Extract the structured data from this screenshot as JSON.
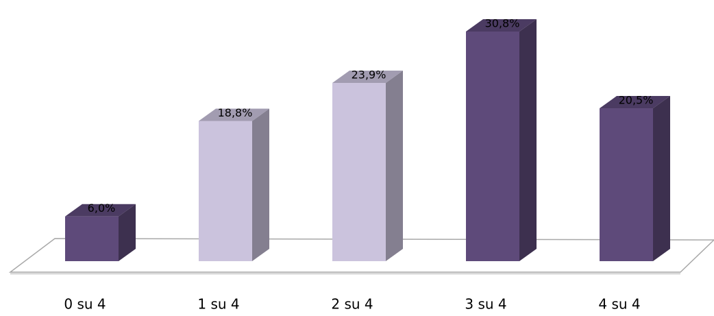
{
  "chart_data": {
    "type": "bar3d",
    "categories": [
      "0 su 4",
      "1 su 4",
      "2 su 4",
      "3 su 4",
      "4 su 4"
    ],
    "values": [
      6.0,
      18.8,
      23.9,
      30.8,
      20.5
    ],
    "value_labels": [
      "6,0%",
      "18,8%",
      "23,9%",
      "30,8%",
      "20,5%"
    ],
    "colors": [
      "#5e4a7a",
      "#cbc3dd",
      "#cbc3dd",
      "#5e4a7a",
      "#5e4a7a"
    ]
  }
}
